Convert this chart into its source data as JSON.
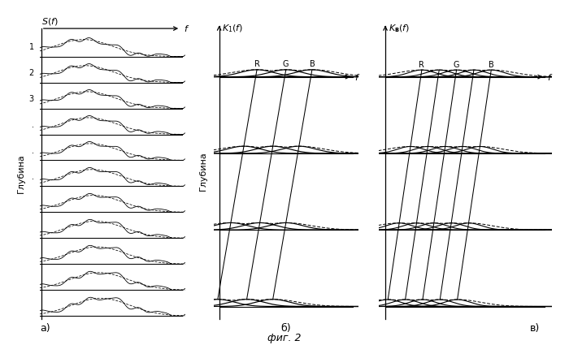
{
  "title": "фиг. 2",
  "panel_a_label": "а)",
  "panel_b_label": "б)",
  "panel_c_label": "в)",
  "depth_label": "Глубина",
  "num_rows_a": 11,
  "num_depth_b": 4,
  "filt_centers_b": [
    0.3,
    0.5,
    0.68
  ],
  "filt_sigma_b": 0.115,
  "filt_shift_b": 0.09,
  "filt_labels_b": [
    "R",
    "G",
    "B"
  ],
  "filt_centers_c": [
    0.25,
    0.35,
    0.45,
    0.55,
    0.65
  ],
  "filt_sigma_c": 0.075,
  "filt_shift_c": 0.065,
  "filt_labels_c": [
    "R",
    "",
    "G",
    "",
    "B"
  ],
  "row_labels_a": [
    "1",
    "2",
    "3",
    ".",
    ".",
    ".",
    "",
    "",
    "",
    "",
    ""
  ],
  "background": "#ffffff"
}
